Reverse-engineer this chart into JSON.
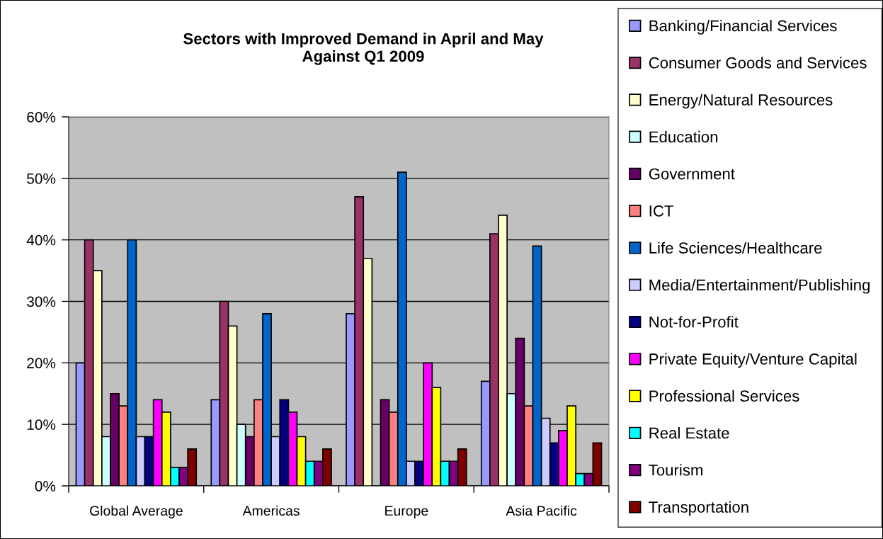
{
  "chart_data": {
    "type": "bar",
    "title": "Sectors with Improved Demand in April and May\nAgainst Q1 2009",
    "categories": [
      "Global Average",
      "Americas",
      "Europe",
      "Asia Pacific"
    ],
    "series": [
      {
        "name": "Banking/Financial Services",
        "color": "#9999ff",
        "values": [
          20,
          14,
          28,
          17
        ]
      },
      {
        "name": "Consumer Goods and Services",
        "color": "#993366",
        "values": [
          40,
          30,
          47,
          41
        ]
      },
      {
        "name": "Energy/Natural Resources",
        "color": "#ffffcc",
        "values": [
          35,
          26,
          37,
          44
        ]
      },
      {
        "name": "Education",
        "color": "#ccffff",
        "values": [
          8,
          10,
          null,
          15
        ]
      },
      {
        "name": "Government",
        "color": "#660066",
        "values": [
          15,
          8,
          14,
          24
        ]
      },
      {
        "name": "ICT",
        "color": "#ff8080",
        "values": [
          13,
          14,
          12,
          13
        ]
      },
      {
        "name": "Life Sciences/Healthcare",
        "color": "#0066cc",
        "values": [
          40,
          28,
          51,
          39
        ]
      },
      {
        "name": "Media/Entertainment/Publishing",
        "color": "#ccccff",
        "values": [
          8,
          8,
          4,
          11
        ]
      },
      {
        "name": "Not-for-Profit",
        "color": "#000080",
        "values": [
          8,
          14,
          4,
          7
        ]
      },
      {
        "name": "Private Equity/Venture Capital",
        "color": "#ff00ff",
        "values": [
          14,
          12,
          20,
          9
        ]
      },
      {
        "name": "Professional Services",
        "color": "#ffff00",
        "values": [
          12,
          8,
          16,
          13
        ]
      },
      {
        "name": "Real Estate",
        "color": "#00ffff",
        "values": [
          3,
          4,
          4,
          2
        ]
      },
      {
        "name": "Tourism",
        "color": "#800080",
        "values": [
          3,
          4,
          4,
          2
        ]
      },
      {
        "name": "Transportation",
        "color": "#800000",
        "values": [
          6,
          6,
          6,
          7
        ]
      }
    ],
    "ylim": [
      0,
      60
    ],
    "yticks": [
      {
        "value": 0,
        "label": "0%"
      },
      {
        "value": 10,
        "label": "10%"
      },
      {
        "value": 20,
        "label": "20%"
      },
      {
        "value": 30,
        "label": "30%"
      },
      {
        "value": 40,
        "label": "40%"
      },
      {
        "value": 50,
        "label": "50%"
      },
      {
        "value": 60,
        "label": "60%"
      }
    ],
    "grid": "y",
    "legend": "right"
  }
}
